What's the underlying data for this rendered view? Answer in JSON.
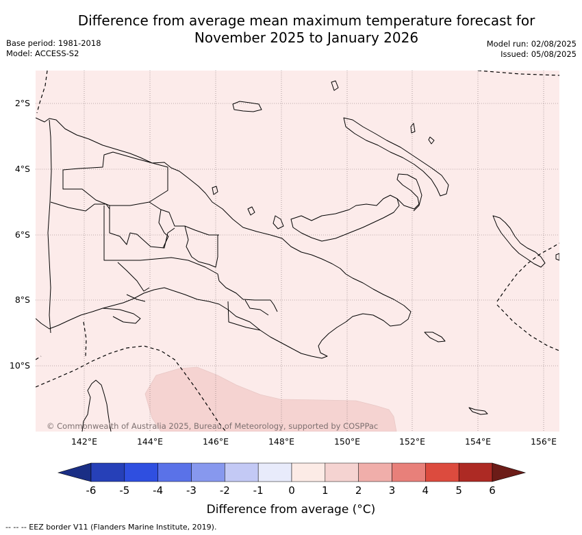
{
  "title": {
    "line1": "Difference from average mean maximum temperature forecast for",
    "line2": "November 2025 to January 2026"
  },
  "meta": {
    "base_period": "Base period: 1981-2018",
    "model": "Model: ACCESS-S2",
    "model_run": "Model run: 02/08/2025",
    "issued": "Issued: 05/08/2025"
  },
  "map": {
    "lon_labels": [
      "142°E",
      "144°E",
      "146°E",
      "148°E",
      "150°E",
      "152°E",
      "154°E",
      "156°E"
    ],
    "lat_labels": [
      "2°S",
      "4°S",
      "6°S",
      "8°S",
      "10°S"
    ],
    "copyright": "© Commonwealth of Australia 2025, Bureau of Meteorology, supported by COSPPac",
    "colors": {
      "background_anomaly": "#fcebea",
      "patch_anomaly": "#f5d3d1",
      "coast": "#000000"
    }
  },
  "legend": {
    "ticks": [
      "-6",
      "-5",
      "-4",
      "-3",
      "-2",
      "-1",
      "0",
      "1",
      "2",
      "3",
      "4",
      "5",
      "6"
    ],
    "colors": [
      "#1a2e85",
      "#2640b8",
      "#2f4fe0",
      "#5a72e8",
      "#8798ee",
      "#c3c9f5",
      "#e8ebfb",
      "#fcebe6",
      "#f5d3d1",
      "#f0aeaa",
      "#e8807a",
      "#dc4b3e",
      "#ad2a24",
      "#6c1c18"
    ],
    "label": "Difference from average (°C)"
  },
  "footnote": "--  --  -- EEZ border V11 (Flanders Marine Institute, 2019)."
}
